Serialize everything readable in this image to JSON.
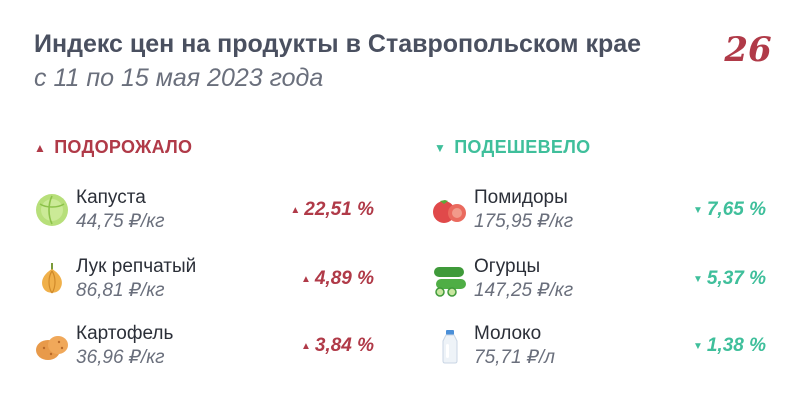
{
  "header": {
    "title": "Индекс цен на продукты в Ставропольском крае",
    "subtitle": "с 11 по 15 мая 2023 года",
    "logo_text": "26"
  },
  "colors": {
    "up": "#b03a48",
    "down": "#3fbf9b",
    "title": "#4a5060"
  },
  "sections": {
    "up": {
      "label": "ПОДОРОЖАЛО",
      "marker": "▲",
      "items": [
        {
          "name": "Капуста",
          "price": "44,75 ₽/кг",
          "change": "22,51 %",
          "arrow": "▲",
          "icon": "cabbage-icon"
        },
        {
          "name": "Лук репчатый",
          "price": "86,81 ₽/кг",
          "change": "4,89 %",
          "arrow": "▲",
          "icon": "onion-icon"
        },
        {
          "name": "Картофель",
          "price": "36,96 ₽/кг",
          "change": "3,84 %",
          "arrow": "▲",
          "icon": "potato-icon"
        }
      ]
    },
    "down": {
      "label": "ПОДЕШЕВЕЛО",
      "marker": "▼",
      "items": [
        {
          "name": "Помидоры",
          "price": "175,95 ₽/кг",
          "change": "7,65 %",
          "arrow": "▼",
          "icon": "tomato-icon"
        },
        {
          "name": "Огурцы",
          "price": "147,25 ₽/кг",
          "change": "5,37 %",
          "arrow": "▼",
          "icon": "cucumber-icon"
        },
        {
          "name": "Молоко",
          "price": "75,71 ₽/л",
          "change": "1,38 %",
          "arrow": "▼",
          "icon": "milk-bottle-icon"
        }
      ]
    }
  }
}
